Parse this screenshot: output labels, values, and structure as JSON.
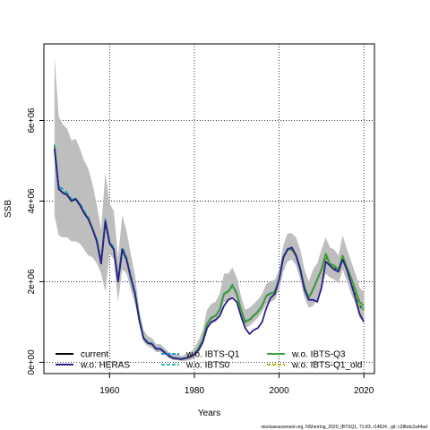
{
  "chart_data": {
    "type": "line",
    "title": "",
    "xlabel": "Years",
    "ylabel": "SSB",
    "xlim": [
      1944.5,
      2022.5
    ],
    "ylim": [
      -280000,
      7900000
    ],
    "x_ticks": [
      1960,
      1980,
      2000,
      2020
    ],
    "y_ticks": [
      0,
      2000000,
      4000000,
      6000000
    ],
    "x_tick_labels": [
      "1960",
      "1980",
      "2000",
      "2020"
    ],
    "y_tick_labels": [
      "0e+00",
      "2e+06",
      "4e+06",
      "6e+06"
    ],
    "grid": true,
    "legend_position": "bottom",
    "confidence_band": {
      "name": "current CI",
      "color": "#bebebe",
      "x": [
        1947,
        1948,
        1949,
        1950,
        1951,
        1952,
        1953,
        1954,
        1955,
        1956,
        1957,
        1958,
        1959,
        1960,
        1961,
        1962,
        1963,
        1964,
        1965,
        1966,
        1967,
        1968,
        1969,
        1970,
        1971,
        1972,
        1973,
        1974,
        1975,
        1976,
        1977,
        1978,
        1979,
        1980,
        1981,
        1982,
        1983,
        1984,
        1985,
        1986,
        1987,
        1988,
        1989,
        1990,
        1991,
        1992,
        1993,
        1994,
        1995,
        1996,
        1997,
        1998,
        1999,
        2000,
        2001,
        2002,
        2003,
        2004,
        2005,
        2006,
        2007,
        2008,
        2009,
        2010,
        2011,
        2012,
        2013,
        2014,
        2015,
        2016,
        2017,
        2018,
        2019,
        2020
      ],
      "upper": [
        7600000,
        6100000,
        5900000,
        5800000,
        5500000,
        5550000,
        5300000,
        5000000,
        4800000,
        4400000,
        3900000,
        3300000,
        4700000,
        3950000,
        3750000,
        2600000,
        3650000,
        3250000,
        2700000,
        2150000,
        1300000,
        800000,
        650000,
        600000,
        450000,
        450000,
        350000,
        250000,
        200000,
        200000,
        150000,
        200000,
        250000,
        350000,
        550000,
        800000,
        1300000,
        1450000,
        1500000,
        1700000,
        2200000,
        2200000,
        2350000,
        2100000,
        1650000,
        1300000,
        1350000,
        1450000,
        1550000,
        1700000,
        1950000,
        2000000,
        2050000,
        2300000,
        2900000,
        3200000,
        3200000,
        3100000,
        2800000,
        2300000,
        2000000,
        2300000,
        2450000,
        2800000,
        3100000,
        2850000,
        2800000,
        2650000,
        3150000,
        2800000,
        2500000,
        2200000,
        1850000,
        1750000
      ],
      "lower": [
        3650000,
        3150000,
        3100000,
        3100000,
        3000000,
        3000000,
        2950000,
        2800000,
        2650000,
        2600000,
        2450000,
        2200000,
        1750000,
        2700000,
        2550000,
        1500000,
        2300000,
        2200000,
        1800000,
        1450000,
        1000000,
        500000,
        400000,
        350000,
        250000,
        250000,
        200000,
        100000,
        60000,
        50000,
        30000,
        40000,
        50000,
        100000,
        250000,
        450000,
        850000,
        950000,
        1000000,
        1150000,
        1500000,
        1500000,
        1650000,
        1550000,
        1150000,
        850000,
        900000,
        1000000,
        1100000,
        1250000,
        1450000,
        1500000,
        1550000,
        1800000,
        2250000,
        2500000,
        2550000,
        2400000,
        2050000,
        1600000,
        1350000,
        1400000,
        1550000,
        1900000,
        2200000,
        2100000,
        2050000,
        1950000,
        2300000,
        2000000,
        1700000,
        1450000,
        1100000,
        1000000
      ]
    },
    "series": [
      {
        "name": "current",
        "color": "#000000",
        "dash": "solid",
        "values": [
          5350000,
          4300000,
          4200000,
          4150000,
          4000000,
          4050000,
          3900000,
          3700000,
          3550000,
          3300000,
          3000000,
          2450000,
          3500000,
          2950000,
          2800000,
          2000000,
          2800000,
          2550000,
          2100000,
          1700000,
          1050000,
          600000,
          480000,
          450000,
          330000,
          330000,
          240000,
          160000,
          100000,
          90000,
          80000,
          100000,
          130000,
          200000,
          350000,
          550000,
          950000,
          1100000,
          1150000,
          1300000,
          1700000,
          1750000,
          1900000,
          1700000,
          1300000,
          1000000,
          1050000,
          1150000,
          1250000,
          1400000,
          1650000,
          1700000,
          1750000,
          2050000,
          2600000,
          2800000,
          2800000,
          2650000,
          2300000,
          1850000,
          1600000,
          1800000,
          2050000,
          2300000,
          2650000,
          2400000,
          2350000,
          2250000,
          2600000,
          2300000,
          2050000,
          1750000,
          1400000,
          1300000
        ]
      },
      {
        "name": "w.o. HERAS",
        "color": "#2a1f8e",
        "dash": "solid",
        "values": [
          5300000,
          4300000,
          4200000,
          4150000,
          4000000,
          4050000,
          3900000,
          3700000,
          3550000,
          3300000,
          3000000,
          2450000,
          3500000,
          2950000,
          2800000,
          2000000,
          2800000,
          2550000,
          2100000,
          1700000,
          1050000,
          600000,
          480000,
          450000,
          330000,
          330000,
          240000,
          160000,
          100000,
          90000,
          80000,
          100000,
          130000,
          200000,
          300000,
          500000,
          850000,
          1000000,
          1050000,
          1150000,
          1400000,
          1550000,
          1600000,
          1500000,
          1150000,
          850000,
          700000,
          800000,
          850000,
          1000000,
          1350000,
          1600000,
          1700000,
          2050000,
          2600000,
          2800000,
          2850000,
          2650000,
          2300000,
          1800000,
          1550000,
          1550000,
          1500000,
          1850000,
          2500000,
          2400000,
          2300000,
          2250000,
          2550000,
          2300000,
          1950000,
          1600000,
          1200000,
          1000000
        ]
      },
      {
        "name": "w.o. IBTS-Q1",
        "color": "#1a9bd0",
        "dash": "dashed",
        "values": [
          5400000,
          4350000,
          4300000,
          4200000,
          4050000,
          4050000,
          3950000,
          3750000,
          3600000,
          3300000,
          3050000,
          2500000,
          3550000,
          3000000,
          2850000,
          2050000,
          2850000,
          2600000,
          2150000,
          1750000,
          1100000,
          620000,
          500000,
          470000,
          350000,
          340000,
          250000,
          170000,
          110000,
          100000,
          90000,
          110000,
          140000,
          210000,
          360000,
          560000,
          960000,
          1120000,
          1160000,
          1320000,
          1720000,
          1770000,
          1930000,
          1720000,
          1320000,
          1020000,
          1070000,
          1170000,
          1270000,
          1420000,
          1670000,
          1720000,
          1770000,
          2070000,
          2620000,
          2820000,
          2820000,
          2670000,
          2320000,
          1870000,
          1620000,
          1820000,
          2070000,
          2320000,
          2670000,
          2420000,
          2370000,
          2270000,
          2620000,
          2320000,
          2070000,
          1770000,
          1420000,
          1320000
        ]
      },
      {
        "name": "w.o. IBTS0",
        "color": "#2bbfa0",
        "dash": "dashed",
        "values": [
          5380000,
          4320000,
          4220000,
          4170000,
          4020000,
          4070000,
          3920000,
          3720000,
          3570000,
          3320000,
          3020000,
          2470000,
          3520000,
          2970000,
          2820000,
          2020000,
          2820000,
          2570000,
          2120000,
          1720000,
          1070000,
          610000,
          490000,
          460000,
          340000,
          335000,
          245000,
          165000,
          105000,
          95000,
          85000,
          105000,
          135000,
          205000,
          355000,
          555000,
          955000,
          1110000,
          1160000,
          1310000,
          1710000,
          1760000,
          1910000,
          1710000,
          1310000,
          1010000,
          1060000,
          1160000,
          1260000,
          1410000,
          1660000,
          1710000,
          1760000,
          2060000,
          2610000,
          2810000,
          2810000,
          2660000,
          2310000,
          1860000,
          1610000,
          1810000,
          2060000,
          2310000,
          2660000,
          2410000,
          2360000,
          2260000,
          2610000,
          2310000,
          2060000,
          1760000,
          1410000,
          1310000
        ]
      },
      {
        "name": "w.o. IBTS-Q3",
        "color": "#3a9e3a",
        "dash": "solid",
        "values": [
          5360000,
          4310000,
          4210000,
          4160000,
          4010000,
          4060000,
          3910000,
          3710000,
          3560000,
          3310000,
          3010000,
          2460000,
          3510000,
          2960000,
          2810000,
          2010000,
          2810000,
          2560000,
          2110000,
          1710000,
          1060000,
          605000,
          485000,
          455000,
          335000,
          332000,
          242000,
          162000,
          102000,
          92000,
          82000,
          102000,
          132000,
          202000,
          352000,
          552000,
          952000,
          1105000,
          1155000,
          1305000,
          1705000,
          1755000,
          1905000,
          1705000,
          1305000,
          1005000,
          1055000,
          1155000,
          1255000,
          1405000,
          1655000,
          1705000,
          1755000,
          2055000,
          2605000,
          2805000,
          2805000,
          2655000,
          2305000,
          1855000,
          1605000,
          1805000,
          2055000,
          2305000,
          2700000,
          2450000,
          2400000,
          2300000,
          2650000,
          2350000,
          2100000,
          1800000,
          1500000,
          1400000
        ]
      },
      {
        "name": "w.o. IBTS-Q1_old",
        "color": "#b5b51c",
        "dash": "dashed",
        "values": [
          5340000,
          4290000,
          4190000,
          4140000,
          3990000,
          4040000,
          3890000,
          3690000,
          3540000,
          3290000,
          2990000,
          2440000,
          3490000,
          2940000,
          2790000,
          1990000,
          2790000,
          2540000,
          2090000,
          1690000,
          1040000,
          595000,
          475000,
          445000,
          325000,
          325000,
          235000,
          155000,
          95000,
          85000,
          75000,
          95000,
          125000,
          195000,
          345000,
          545000,
          945000,
          1095000,
          1145000,
          1295000,
          1695000,
          1745000,
          1895000,
          1695000,
          1295000,
          995000,
          1045000,
          1145000,
          1245000,
          1395000,
          1645000,
          1695000,
          1745000,
          2045000,
          2595000,
          2795000,
          2795000,
          2645000,
          2295000,
          1845000,
          1595000,
          1795000,
          2045000,
          2295000,
          2640000,
          2390000,
          2340000,
          2240000,
          2590000,
          2290000,
          2040000,
          1740000,
          1390000,
          1290000
        ]
      }
    ]
  },
  "footer_text": "stockassessment.org,  NSherring_2020_IBTSQ1,  71-83,  r14624 ,  git:  c28bdc2a44ad"
}
